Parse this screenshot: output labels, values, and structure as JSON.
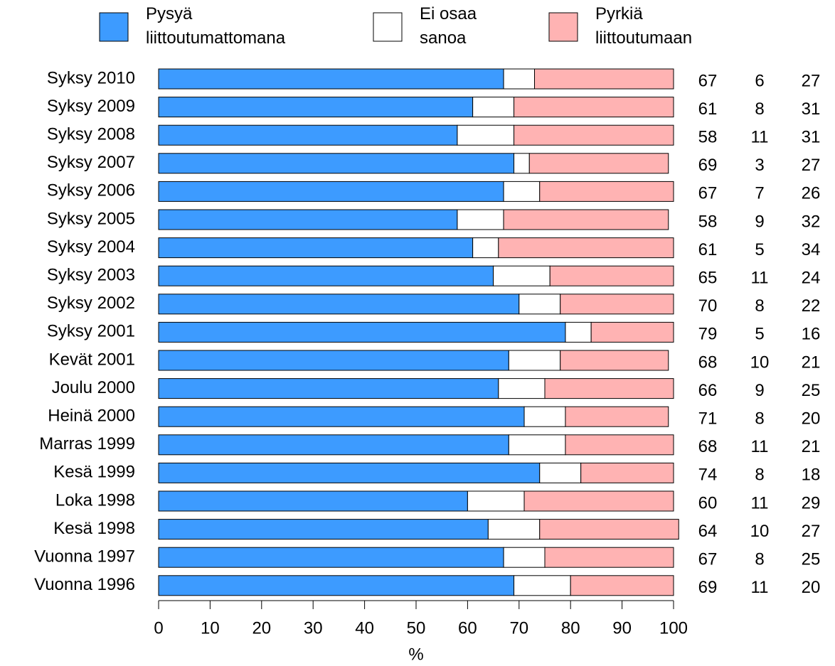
{
  "chart_data": {
    "type": "stacked_barh",
    "categories": [
      "Syksy 2010",
      "Syksy 2009",
      "Syksy 2008",
      "Syksy 2007",
      "Syksy 2006",
      "Syksy 2005",
      "Syksy 2004",
      "Syksy 2003",
      "Syksy 2002",
      "Syksy 2001",
      "Kevät 2001",
      "Joulu 2000",
      "Heinä 2000",
      "Marras 1999",
      "Kesä 1999",
      "Loka 1998",
      "Kesä 1998",
      "Vuonna 1997",
      "Vuonna 1996"
    ],
    "series": [
      {
        "name": "Pysyä\nliittoutumattomana",
        "color": "#3d9bff",
        "values": [
          67,
          61,
          58,
          69,
          67,
          58,
          61,
          65,
          70,
          79,
          68,
          66,
          71,
          68,
          74,
          60,
          64,
          67,
          69
        ]
      },
      {
        "name": "Ei osaa\nsanoa",
        "color": "#ffffff",
        "values": [
          6,
          8,
          11,
          3,
          7,
          9,
          5,
          11,
          8,
          5,
          10,
          9,
          8,
          11,
          8,
          11,
          10,
          8,
          11
        ]
      },
      {
        "name": "Pyrkiä\nliittoutumaan",
        "color": "#ffb3b3",
        "values": [
          27,
          31,
          31,
          27,
          26,
          32,
          34,
          24,
          22,
          16,
          21,
          25,
          20,
          21,
          18,
          29,
          27,
          25,
          20
        ]
      }
    ],
    "xlabel": "%",
    "xlim": [
      0,
      100
    ],
    "xticks": [
      0,
      10,
      20,
      30,
      40,
      50,
      60,
      70,
      80,
      90,
      100
    ]
  }
}
